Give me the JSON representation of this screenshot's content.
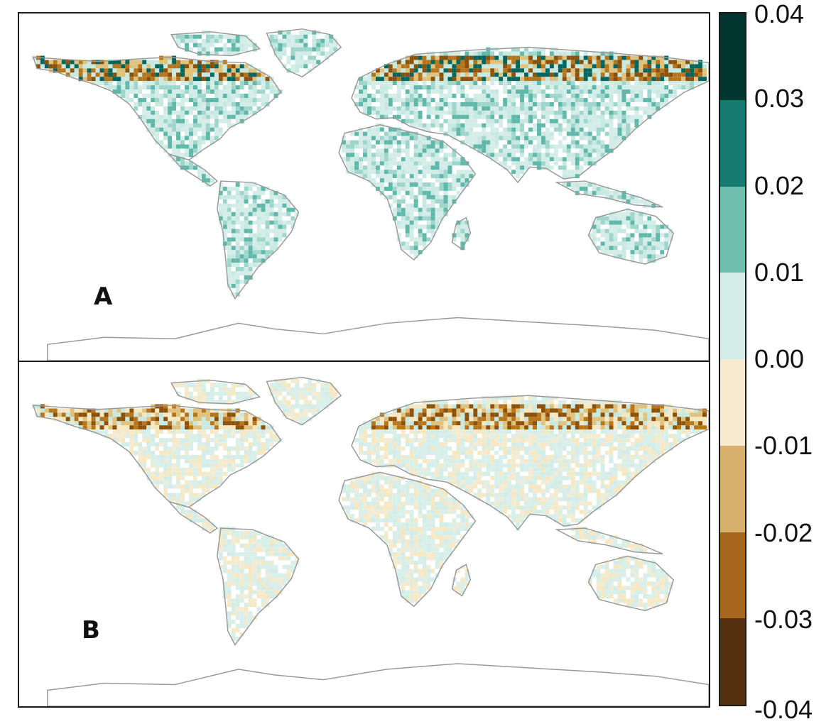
{
  "panels": [
    {
      "label": "A",
      "land_colors": [
        "#d4ede8",
        "#c7e9e1",
        "#9fd5cb",
        "#ffffff",
        "#d4ede8",
        "#5fb8aa"
      ],
      "arctic_band_colors": [
        "#b8761c",
        "#8c510a",
        "#dfc27d",
        "#c7e9e1",
        "#01665e"
      ]
    },
    {
      "label": "B",
      "land_colors": [
        "#d9efe9",
        "#f3ebd2",
        "#d9efe9",
        "#f6e8c3",
        "#ffffff",
        "#d4ede8"
      ],
      "arctic_band_colors": [
        "#b8761c",
        "#8c510a",
        "#dfc27d",
        "#f6e8c3",
        "#c7e9e1"
      ]
    }
  ],
  "colorbar": {
    "ticks": [
      "0.04",
      "0.03",
      "0.02",
      "0.01",
      "0.00",
      "-0.01",
      "-0.02",
      "-0.03",
      "-0.04"
    ],
    "bins": [
      {
        "range": [
          0.03,
          0.04
        ],
        "color": "#01352f"
      },
      {
        "range": [
          0.02,
          0.03
        ],
        "color": "#177a70"
      },
      {
        "range": [
          0.01,
          0.02
        ],
        "color": "#6fbfb0"
      },
      {
        "range": [
          0.0,
          0.01
        ],
        "color": "#d4ede8"
      },
      {
        "range": [
          -0.01,
          0.0
        ],
        "color": "#f6ebcf"
      },
      {
        "range": [
          -0.02,
          -0.01
        ],
        "color": "#d6b06c"
      },
      {
        "range": [
          -0.03,
          -0.02
        ],
        "color": "#a6661e"
      },
      {
        "range": [
          -0.04,
          -0.03
        ],
        "color": "#553010"
      }
    ]
  },
  "coastline_color": "#9a9a9a"
}
